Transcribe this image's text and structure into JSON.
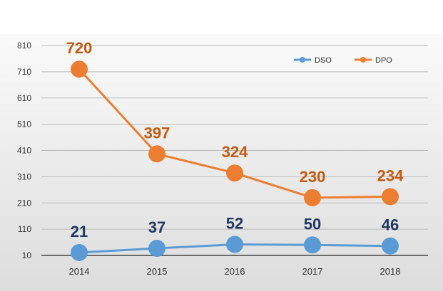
{
  "chart_data": {
    "type": "line",
    "title": "",
    "xlabel": "",
    "ylabel": "",
    "categories": [
      "2014",
      "2015",
      "2016",
      "2017",
      "2018"
    ],
    "ylim": [
      10,
      810
    ],
    "yticks": [
      "810",
      "710",
      "610",
      "510",
      "410",
      "310",
      "210",
      "110",
      "10"
    ],
    "grid": true,
    "legend_position": "top-right",
    "series": [
      {
        "name": "DSO",
        "values": [
          21,
          37,
          52,
          50,
          46
        ],
        "labels": [
          "21",
          "37",
          "52",
          "50",
          "46"
        ],
        "color": "#5B9BD5",
        "label_color": "#1F3864"
      },
      {
        "name": "DPO",
        "values": [
          720,
          397,
          324,
          230,
          234
        ],
        "labels": [
          "720",
          "397",
          "324",
          "230",
          "234"
        ],
        "color": "#ED7D31",
        "label_color": "#C55A11"
      }
    ]
  },
  "colors": {
    "plot_bg_top": "#FAFAFA",
    "plot_bg_bottom": "#DDDDDD",
    "grid": "#BBBBBB",
    "axis": "#444444"
  }
}
